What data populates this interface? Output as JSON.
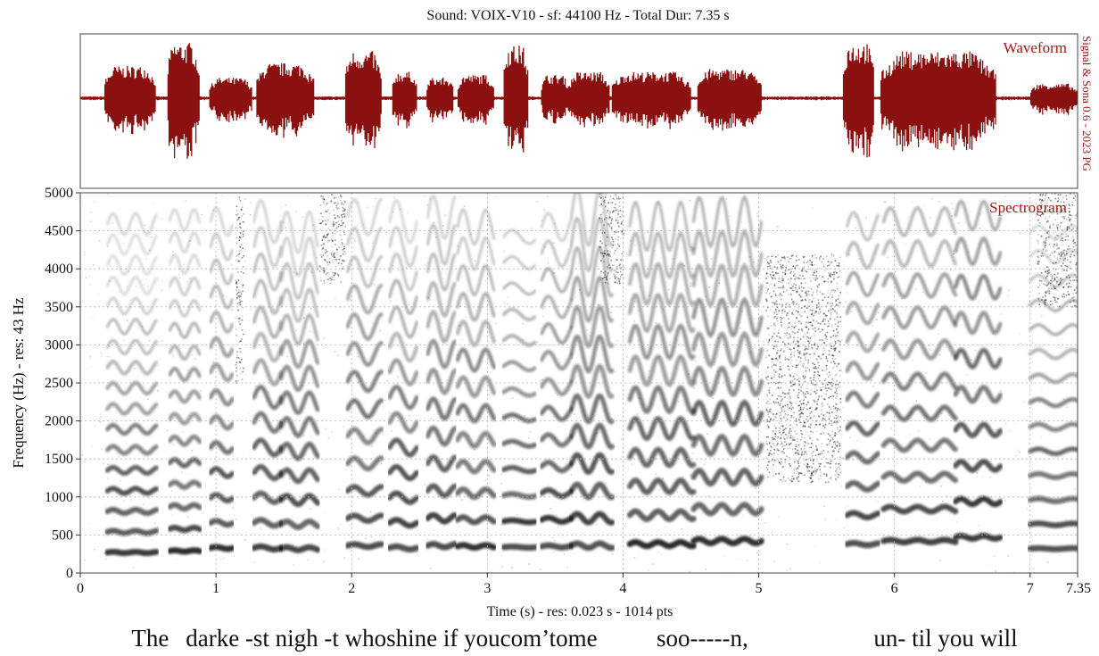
{
  "header": {
    "title": "Sound: VOIX-V10 - sf: 44100 Hz - Total Dur: 7.35 s"
  },
  "side_credit": "Signal & Sona 0.6 - 2023 PG",
  "colors": {
    "waveform": "#8b1010",
    "panel_label": "#a01818",
    "spectrogram_ink": "#111111",
    "grid": "#b0b0b0",
    "frame": "#444444"
  },
  "chart_data": [
    {
      "type": "area",
      "panel": "waveform",
      "panel_label": "Waveform",
      "xlim": [
        0,
        7.35
      ],
      "ylim": [
        -1,
        1
      ],
      "segments": [
        {
          "start": 0.18,
          "end": 0.56,
          "amp": 0.55
        },
        {
          "start": 0.64,
          "end": 0.88,
          "amp": 0.95
        },
        {
          "start": 0.95,
          "end": 1.27,
          "amp": 0.35
        },
        {
          "start": 1.3,
          "end": 1.72,
          "amp": 0.6
        },
        {
          "start": 1.95,
          "end": 2.22,
          "amp": 0.8
        },
        {
          "start": 2.3,
          "end": 2.48,
          "amp": 0.45
        },
        {
          "start": 2.55,
          "end": 2.75,
          "amp": 0.35
        },
        {
          "start": 2.78,
          "end": 3.05,
          "amp": 0.4
        },
        {
          "start": 3.12,
          "end": 3.3,
          "amp": 0.9
        },
        {
          "start": 3.4,
          "end": 3.6,
          "amp": 0.4
        },
        {
          "start": 3.6,
          "end": 3.9,
          "amp": 0.45
        },
        {
          "start": 3.92,
          "end": 4.5,
          "amp": 0.45
        },
        {
          "start": 4.55,
          "end": 5.02,
          "amp": 0.5
        },
        {
          "start": 5.62,
          "end": 5.85,
          "amp": 0.95
        },
        {
          "start": 5.9,
          "end": 6.75,
          "amp": 0.8
        },
        {
          "start": 7.0,
          "end": 7.35,
          "amp": 0.25
        }
      ]
    },
    {
      "type": "heatmap",
      "panel": "spectrogram",
      "panel_label": "Spectrogram",
      "ylabel": "Frequency (Hz) - res: 43 Hz",
      "xlabel": "Time (s) - res: 0.023 s - 1014 pts",
      "xlim": [
        0,
        7.35
      ],
      "ylim": [
        0,
        5000
      ],
      "x_ticks": [
        "0",
        "1",
        "2",
        "3",
        "4",
        "5",
        "6",
        "7",
        "7.35"
      ],
      "y_ticks": [
        "0",
        "500",
        "1000",
        "1500",
        "2000",
        "2500",
        "3000",
        "3500",
        "4000",
        "4500",
        "5000"
      ],
      "grid": true,
      "voiced_segments": [
        {
          "start": 0.2,
          "end": 0.56,
          "f0": 270,
          "vib": 6,
          "depth": 0.03
        },
        {
          "start": 0.66,
          "end": 0.88,
          "f0": 290,
          "vib": 7,
          "depth": 0.03
        },
        {
          "start": 0.96,
          "end": 1.12,
          "f0": 330,
          "vib": 6,
          "depth": 0.04
        },
        {
          "start": 1.28,
          "end": 1.48,
          "f0": 330,
          "vib": 5,
          "depth": 0.06
        },
        {
          "start": 1.48,
          "end": 1.75,
          "f0": 320,
          "vib": 6,
          "depth": 0.06
        },
        {
          "start": 1.97,
          "end": 2.22,
          "f0": 360,
          "vib": 5,
          "depth": 0.05
        },
        {
          "start": 2.28,
          "end": 2.48,
          "f0": 330,
          "vib": 5,
          "depth": 0.06
        },
        {
          "start": 2.56,
          "end": 2.76,
          "f0": 360,
          "vib": 6,
          "depth": 0.06
        },
        {
          "start": 2.78,
          "end": 3.05,
          "f0": 350,
          "vib": 6,
          "depth": 0.05
        },
        {
          "start": 3.12,
          "end": 3.35,
          "f0": 340,
          "vib": 4,
          "depth": 0.02
        },
        {
          "start": 3.4,
          "end": 3.62,
          "f0": 350,
          "vib": 5,
          "depth": 0.04
        },
        {
          "start": 3.62,
          "end": 3.92,
          "f0": 360,
          "vib": 6,
          "depth": 0.08
        },
        {
          "start": 4.05,
          "end": 4.52,
          "f0": 380,
          "vib": 6,
          "depth": 0.07
        },
        {
          "start": 4.52,
          "end": 5.02,
          "f0": 420,
          "vib": 6,
          "depth": 0.07
        },
        {
          "start": 5.65,
          "end": 5.88,
          "f0": 380,
          "vib": 5,
          "depth": 0.04
        },
        {
          "start": 5.92,
          "end": 6.45,
          "f0": 420,
          "vib": 5,
          "depth": 0.04
        },
        {
          "start": 6.45,
          "end": 6.78,
          "f0": 470,
          "vib": 6,
          "depth": 0.04
        },
        {
          "start": 7.0,
          "end": 7.35,
          "f0": 320,
          "vib": 4,
          "depth": 0.02
        }
      ],
      "noise_regions": [
        {
          "start": 1.14,
          "end": 1.2,
          "fmin": 2500,
          "fmax": 5000
        },
        {
          "start": 1.76,
          "end": 1.95,
          "fmin": 3800,
          "fmax": 5000
        },
        {
          "start": 3.82,
          "end": 4.0,
          "fmin": 3800,
          "fmax": 5000
        },
        {
          "start": 5.05,
          "end": 5.6,
          "fmin": 1200,
          "fmax": 4200
        },
        {
          "start": 7.05,
          "end": 7.35,
          "fmin": 3500,
          "fmax": 5000
        }
      ]
    }
  ],
  "lyrics": [
    {
      "t": 0.18,
      "text": "The"
    },
    {
      "t": 0.58,
      "text": "darke -st nigh -t whoshine if youcom’tome"
    },
    {
      "t": 4.05,
      "text": "soo-----n,"
    },
    {
      "t": 5.65,
      "text": "un- til you will"
    }
  ]
}
